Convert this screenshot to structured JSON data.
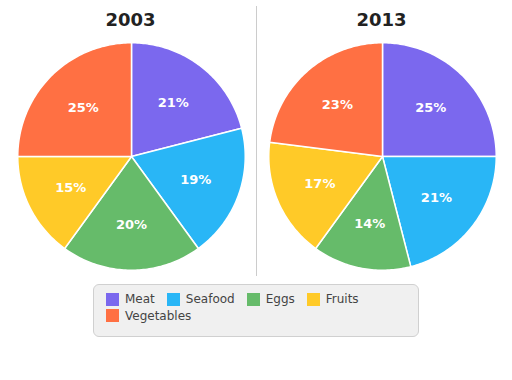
{
  "chart_data": [
    {
      "type": "pie",
      "title": "2003",
      "categories": [
        "Meat",
        "Seafood",
        "Eggs",
        "Fruits",
        "Vegetables"
      ],
      "values": [
        21,
        19,
        20,
        15,
        25
      ],
      "value_labels": [
        "21%",
        "19%",
        "20%",
        "15%",
        "25%"
      ],
      "colors": [
        "#7B68EE",
        "#29B6F6",
        "#66BB6A",
        "#FFCA28",
        "#FF7043"
      ],
      "data_labels": true,
      "legend": "bottom"
    },
    {
      "type": "pie",
      "title": "2013",
      "categories": [
        "Meat",
        "Seafood",
        "Eggs",
        "Fruits",
        "Vegetables"
      ],
      "values": [
        25,
        21,
        14,
        17,
        23
      ],
      "value_labels": [
        "25%",
        "21%",
        "14%",
        "17%",
        "23%"
      ],
      "colors": [
        "#7B68EE",
        "#29B6F6",
        "#66BB6A",
        "#FFCA28",
        "#FF7043"
      ],
      "data_labels": true,
      "legend": "bottom"
    }
  ]
}
